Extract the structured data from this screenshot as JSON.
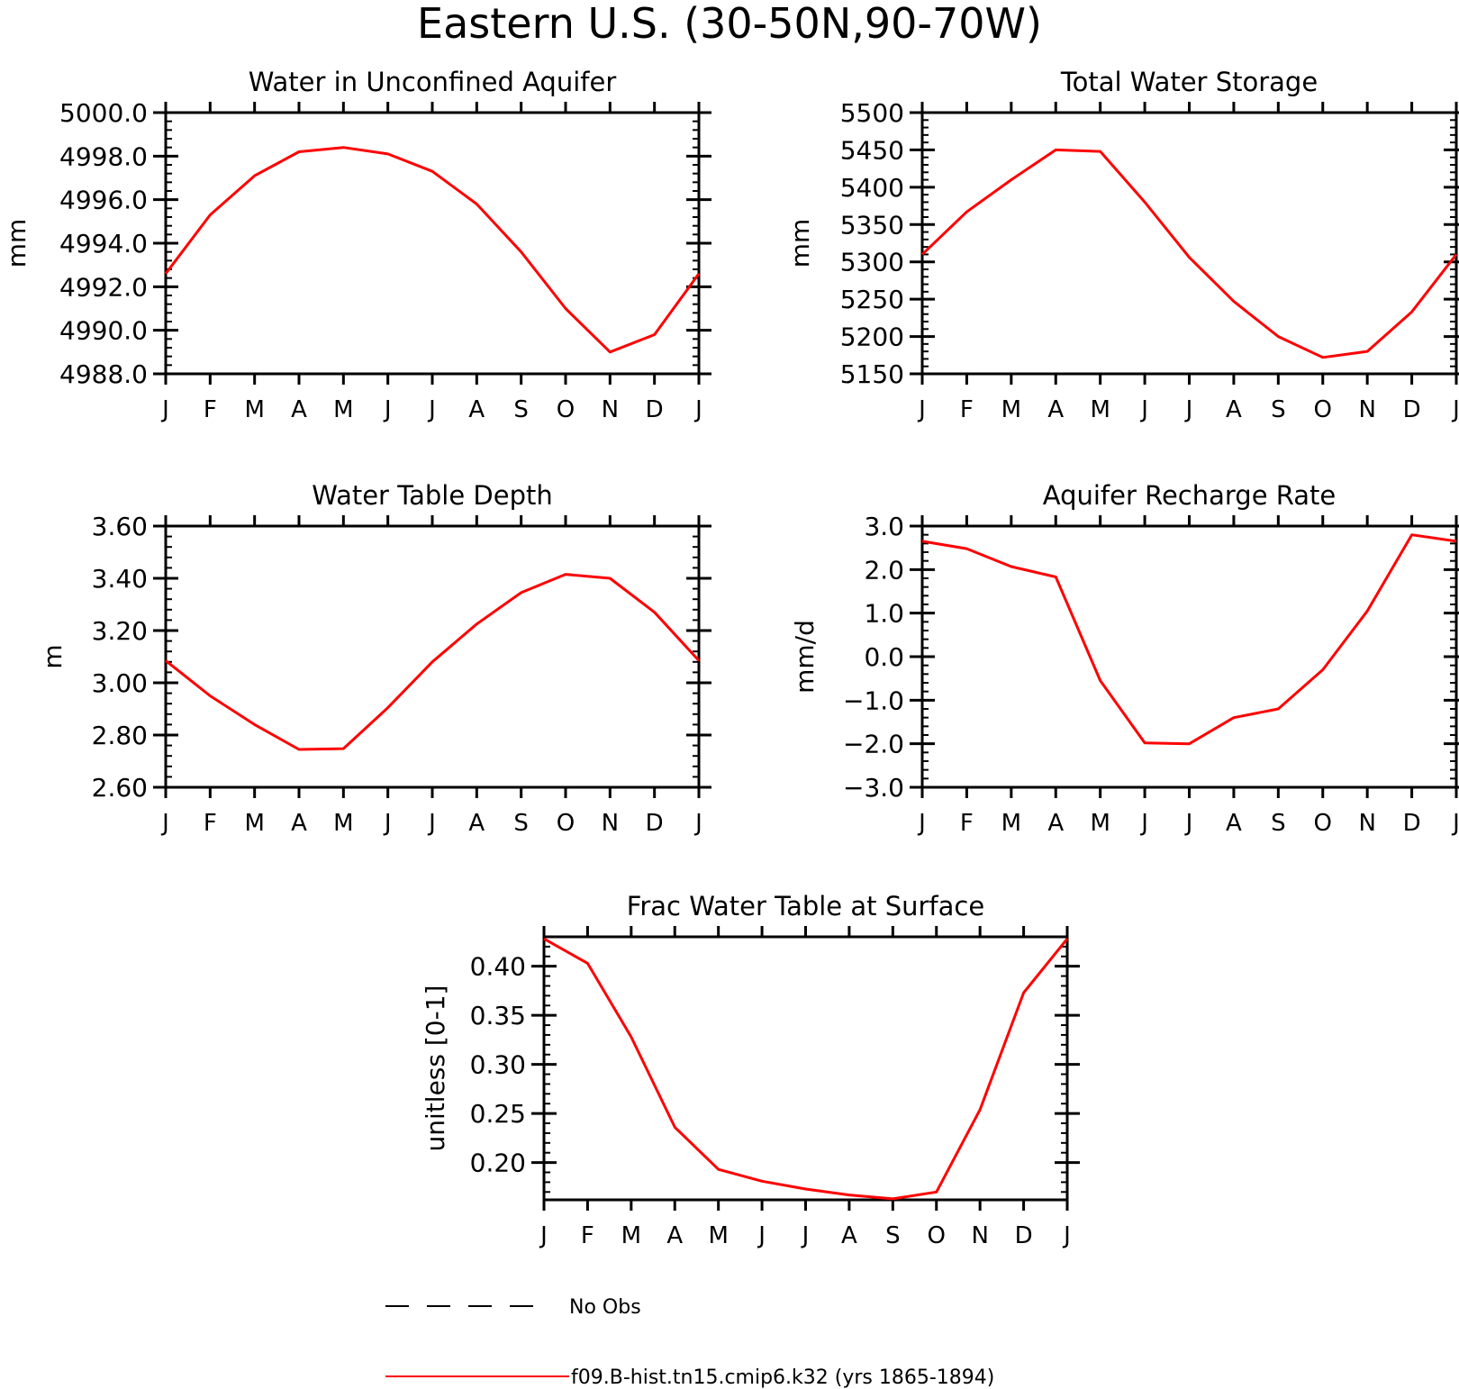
{
  "figure_title": "Eastern U.S. (30-50N,90-70W)",
  "colors": {
    "model": "#ff0000",
    "obs": "#000000",
    "axes": "#000000"
  },
  "legend": {
    "entries": [
      {
        "label": "No Obs",
        "style": "dashed",
        "color": "#000000"
      },
      {
        "label": "f09.B-hist.tn15.cmip6.k32 (yrs 1865-1894)",
        "style": "solid",
        "color": "#ff0000"
      }
    ]
  },
  "chart_data": [
    {
      "type": "line",
      "title": "Water in Unconfined Aquifer",
      "ylabel": "mm",
      "xlabel": "",
      "categories": [
        "J",
        "F",
        "M",
        "A",
        "M",
        "J",
        "J",
        "A",
        "S",
        "O",
        "N",
        "D",
        "J"
      ],
      "ylim": [
        4988.0,
        5000.0
      ],
      "yticks": [
        "5000.0",
        "4998.0",
        "4996.0",
        "4994.0",
        "4992.0",
        "4990.0",
        "4988.0"
      ],
      "grid": false,
      "series": [
        {
          "values": [
            4992.6,
            4995.3,
            4997.1,
            4998.2,
            4998.4,
            4998.1,
            4997.3,
            4995.8,
            4993.6,
            4991.0,
            4989.0,
            4989.8,
            4992.6
          ]
        }
      ]
    },
    {
      "type": "line",
      "title": "Total Water Storage",
      "ylabel": "mm",
      "xlabel": "",
      "categories": [
        "J",
        "F",
        "M",
        "A",
        "M",
        "J",
        "J",
        "A",
        "S",
        "O",
        "N",
        "D",
        "J"
      ],
      "ylim": [
        5150,
        5500
      ],
      "yticks": [
        "5500",
        "5450",
        "5400",
        "5350",
        "5300",
        "5250",
        "5200",
        "5150"
      ],
      "grid": false,
      "series": [
        {
          "values": [
            5310,
            5367,
            5410,
            5450,
            5448,
            5380,
            5306,
            5247,
            5200,
            5172,
            5180,
            5233,
            5310
          ]
        }
      ]
    },
    {
      "type": "line",
      "title": "Water Table Depth",
      "ylabel": "m",
      "xlabel": "",
      "categories": [
        "J",
        "F",
        "M",
        "A",
        "M",
        "J",
        "J",
        "A",
        "S",
        "O",
        "N",
        "D",
        "J"
      ],
      "ylim": [
        2.6,
        3.6
      ],
      "yticks": [
        "3.60",
        "3.40",
        "3.20",
        "3.00",
        "2.80",
        "2.60"
      ],
      "grid": false,
      "series": [
        {
          "values": [
            3.085,
            2.95,
            2.84,
            2.745,
            2.748,
            2.905,
            3.08,
            3.225,
            3.345,
            3.415,
            3.4,
            3.27,
            3.085
          ]
        }
      ]
    },
    {
      "type": "line",
      "title": "Aquifer Recharge Rate",
      "ylabel": "mm/d",
      "xlabel": "",
      "categories": [
        "J",
        "F",
        "M",
        "A",
        "M",
        "J",
        "J",
        "A",
        "S",
        "O",
        "N",
        "D",
        "J"
      ],
      "ylim": [
        -3.0,
        3.0
      ],
      "yticks": [
        "3.0",
        "2.0",
        "1.0",
        "0.0",
        "-1.0",
        "-2.0",
        "-3.0"
      ],
      "grid": false,
      "series": [
        {
          "values": [
            2.65,
            2.48,
            2.07,
            1.83,
            -0.55,
            -1.98,
            -2.0,
            -1.4,
            -1.2,
            -0.3,
            1.05,
            2.8,
            2.65
          ]
        }
      ]
    },
    {
      "type": "line",
      "title": "Frac Water Table at Surface",
      "ylabel": "unitless [0-1]",
      "xlabel": "",
      "categories": [
        "J",
        "F",
        "M",
        "A",
        "M",
        "J",
        "J",
        "A",
        "S",
        "O",
        "N",
        "D",
        "J"
      ],
      "ylim": [
        0.162,
        0.43
      ],
      "yticks": [
        "0.40",
        "0.35",
        "0.30",
        "0.25",
        "0.20"
      ],
      "grid": false,
      "series": [
        {
          "values": [
            0.428,
            0.403,
            0.328,
            0.236,
            0.193,
            0.181,
            0.173,
            0.167,
            0.163,
            0.17,
            0.254,
            0.373,
            0.428
          ]
        }
      ]
    }
  ]
}
